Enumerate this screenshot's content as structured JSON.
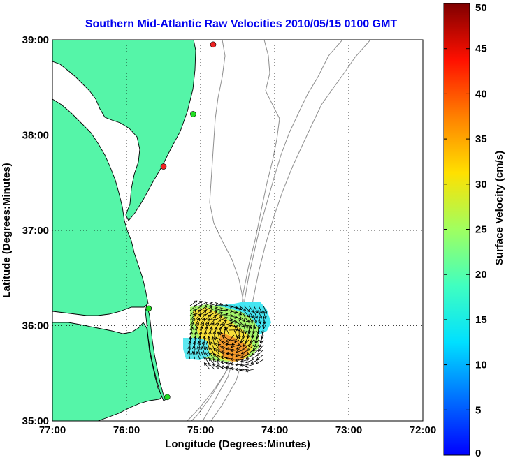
{
  "title": "Southern Mid-Atlantic Raw Velocities 2010/05/15 0100 GMT",
  "colors": {
    "title": "#0000ee",
    "land": "#55f5a8",
    "coast": "#000000",
    "isobath": "#8f8f8f",
    "grid": "#000000",
    "station_green": "#22dd22",
    "station_red": "#ee2222"
  },
  "map": {
    "xlabel": "Longitude (Degrees:Minutes)",
    "ylabel": "Latitude (Degrees:Minutes)",
    "lon_range": [
      -77,
      -72
    ],
    "lat_range": [
      35,
      39
    ],
    "x_ticks": [
      {
        "value": -77,
        "label": "77:00"
      },
      {
        "value": -76,
        "label": "76:00"
      },
      {
        "value": -75,
        "label": "75:00"
      },
      {
        "value": -74,
        "label": "74:00"
      },
      {
        "value": -73,
        "label": "73:00"
      },
      {
        "value": -72,
        "label": "72:00"
      }
    ],
    "y_ticks": [
      {
        "value": 39,
        "label": "39:00"
      },
      {
        "value": 38,
        "label": "38:00"
      },
      {
        "value": 37,
        "label": "37:00"
      },
      {
        "value": 36,
        "label": "36:00"
      },
      {
        "value": 35,
        "label": "35:00"
      }
    ],
    "grid": "dotted",
    "stations": [
      {
        "lon": -74.83,
        "lat": 38.95,
        "color": "red"
      },
      {
        "lon": -75.1,
        "lat": 38.22,
        "color": "green"
      },
      {
        "lon": -75.5,
        "lat": 37.67,
        "color": "red"
      },
      {
        "lon": -75.7,
        "lat": 36.18,
        "color": "green"
      },
      {
        "lon": -75.45,
        "lat": 35.25,
        "color": "green"
      }
    ]
  },
  "colorbar": {
    "label": "Surface Velocity (cm/s)",
    "range": [
      0,
      50
    ],
    "ticks": [
      {
        "value": 0,
        "label": "0"
      },
      {
        "value": 5,
        "label": "5"
      },
      {
        "value": 10,
        "label": "10"
      },
      {
        "value": 15,
        "label": "15"
      },
      {
        "value": 20,
        "label": "20"
      },
      {
        "value": 25,
        "label": "25"
      },
      {
        "value": 30,
        "label": "30"
      },
      {
        "value": 35,
        "label": "35"
      },
      {
        "value": 40,
        "label": "40"
      },
      {
        "value": 45,
        "label": "45"
      },
      {
        "value": 50,
        "label": "50"
      }
    ],
    "colormap": "jet"
  }
}
